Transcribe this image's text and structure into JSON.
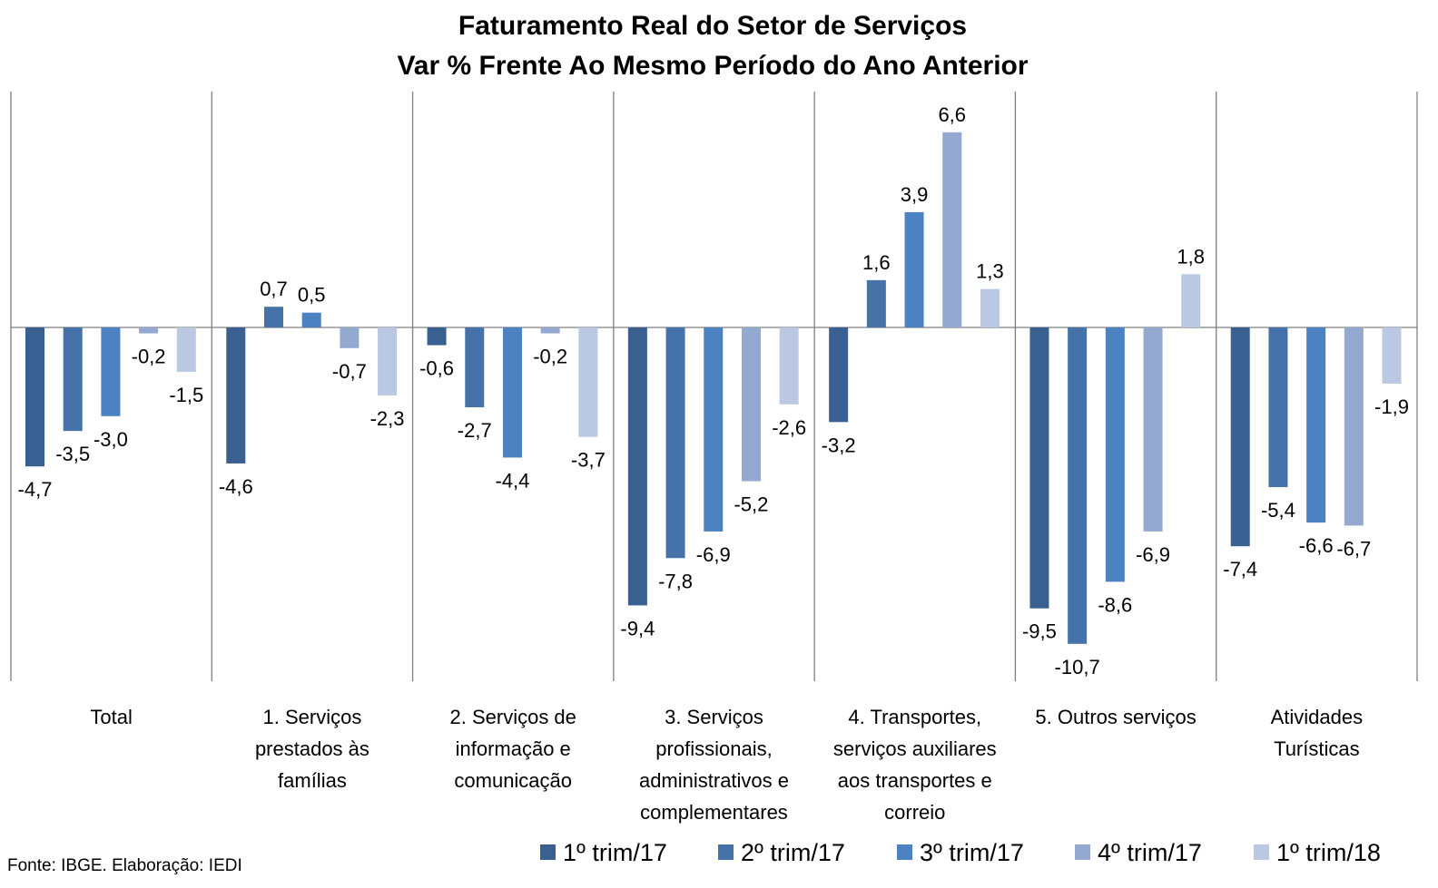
{
  "chart_data": {
    "type": "bar",
    "title": [
      "Faturamento Real do Setor de Serviços",
      "Var % Frente Ao Mesmo Período do Ano Anterior"
    ],
    "source": "Fonte: IBGE. Elaboração: IEDI",
    "categories": [
      [
        "Total"
      ],
      [
        "1. Serviços",
        "prestados às",
        "famílias"
      ],
      [
        "2. Serviços de",
        "informação e",
        "comunicação"
      ],
      [
        "3. Serviços",
        "profissionais,",
        "administrativos e",
        "complementares"
      ],
      [
        "4. Transportes,",
        "serviços auxiliares",
        "aos transportes e",
        "correio"
      ],
      [
        "5. Outros serviços"
      ],
      [
        "Atividades",
        "Turísticas"
      ]
    ],
    "series": [
      {
        "name": "1º trim/17",
        "color": "#3a5f91",
        "values": [
          -4.7,
          -4.6,
          -0.6,
          -9.4,
          -3.2,
          -9.5,
          -7.4
        ],
        "labels": [
          "-4,7",
          "-4,6",
          "-0,6",
          "-9,4",
          "-3,2",
          "-9,5",
          "-7,4"
        ]
      },
      {
        "name": "2º trim/17",
        "color": "#4672aa",
        "values": [
          -3.5,
          0.7,
          -2.7,
          -7.8,
          1.6,
          -10.7,
          -5.4
        ],
        "labels": [
          "-3,5",
          "0,7",
          "-2,7",
          "-7,8",
          "1,6",
          "-10,7",
          "-5,4"
        ]
      },
      {
        "name": "3º trim/17",
        "color": "#4d82c2",
        "values": [
          -3.0,
          0.5,
          -4.4,
          -6.9,
          3.9,
          -8.6,
          -6.6
        ],
        "labels": [
          "-3,0",
          "0,5",
          "-4,4",
          "-6,9",
          "3,9",
          "-8,6",
          "-6,6"
        ]
      },
      {
        "name": "4º trim/17",
        "color": "#94a9d0",
        "values": [
          -0.2,
          -0.7,
          -0.2,
          -5.2,
          6.6,
          -6.9,
          -6.7
        ],
        "labels": [
          "-0,2",
          "-0,7",
          "-0,2",
          "-5,2",
          "6,6",
          "-6,9",
          "-6,7"
        ]
      },
      {
        "name": "1º trim/18",
        "color": "#bac8e3",
        "values": [
          -1.5,
          -2.3,
          -3.7,
          -2.6,
          1.3,
          1.8,
          -1.9
        ],
        "labels": [
          "-1,5",
          "-2,3",
          "-3,7",
          "-2,6",
          "1,3",
          "1,8",
          "-1,9"
        ]
      }
    ],
    "ylim": [
      -12,
      7.8
    ],
    "legend_position": "bottom-right",
    "grid": false
  }
}
